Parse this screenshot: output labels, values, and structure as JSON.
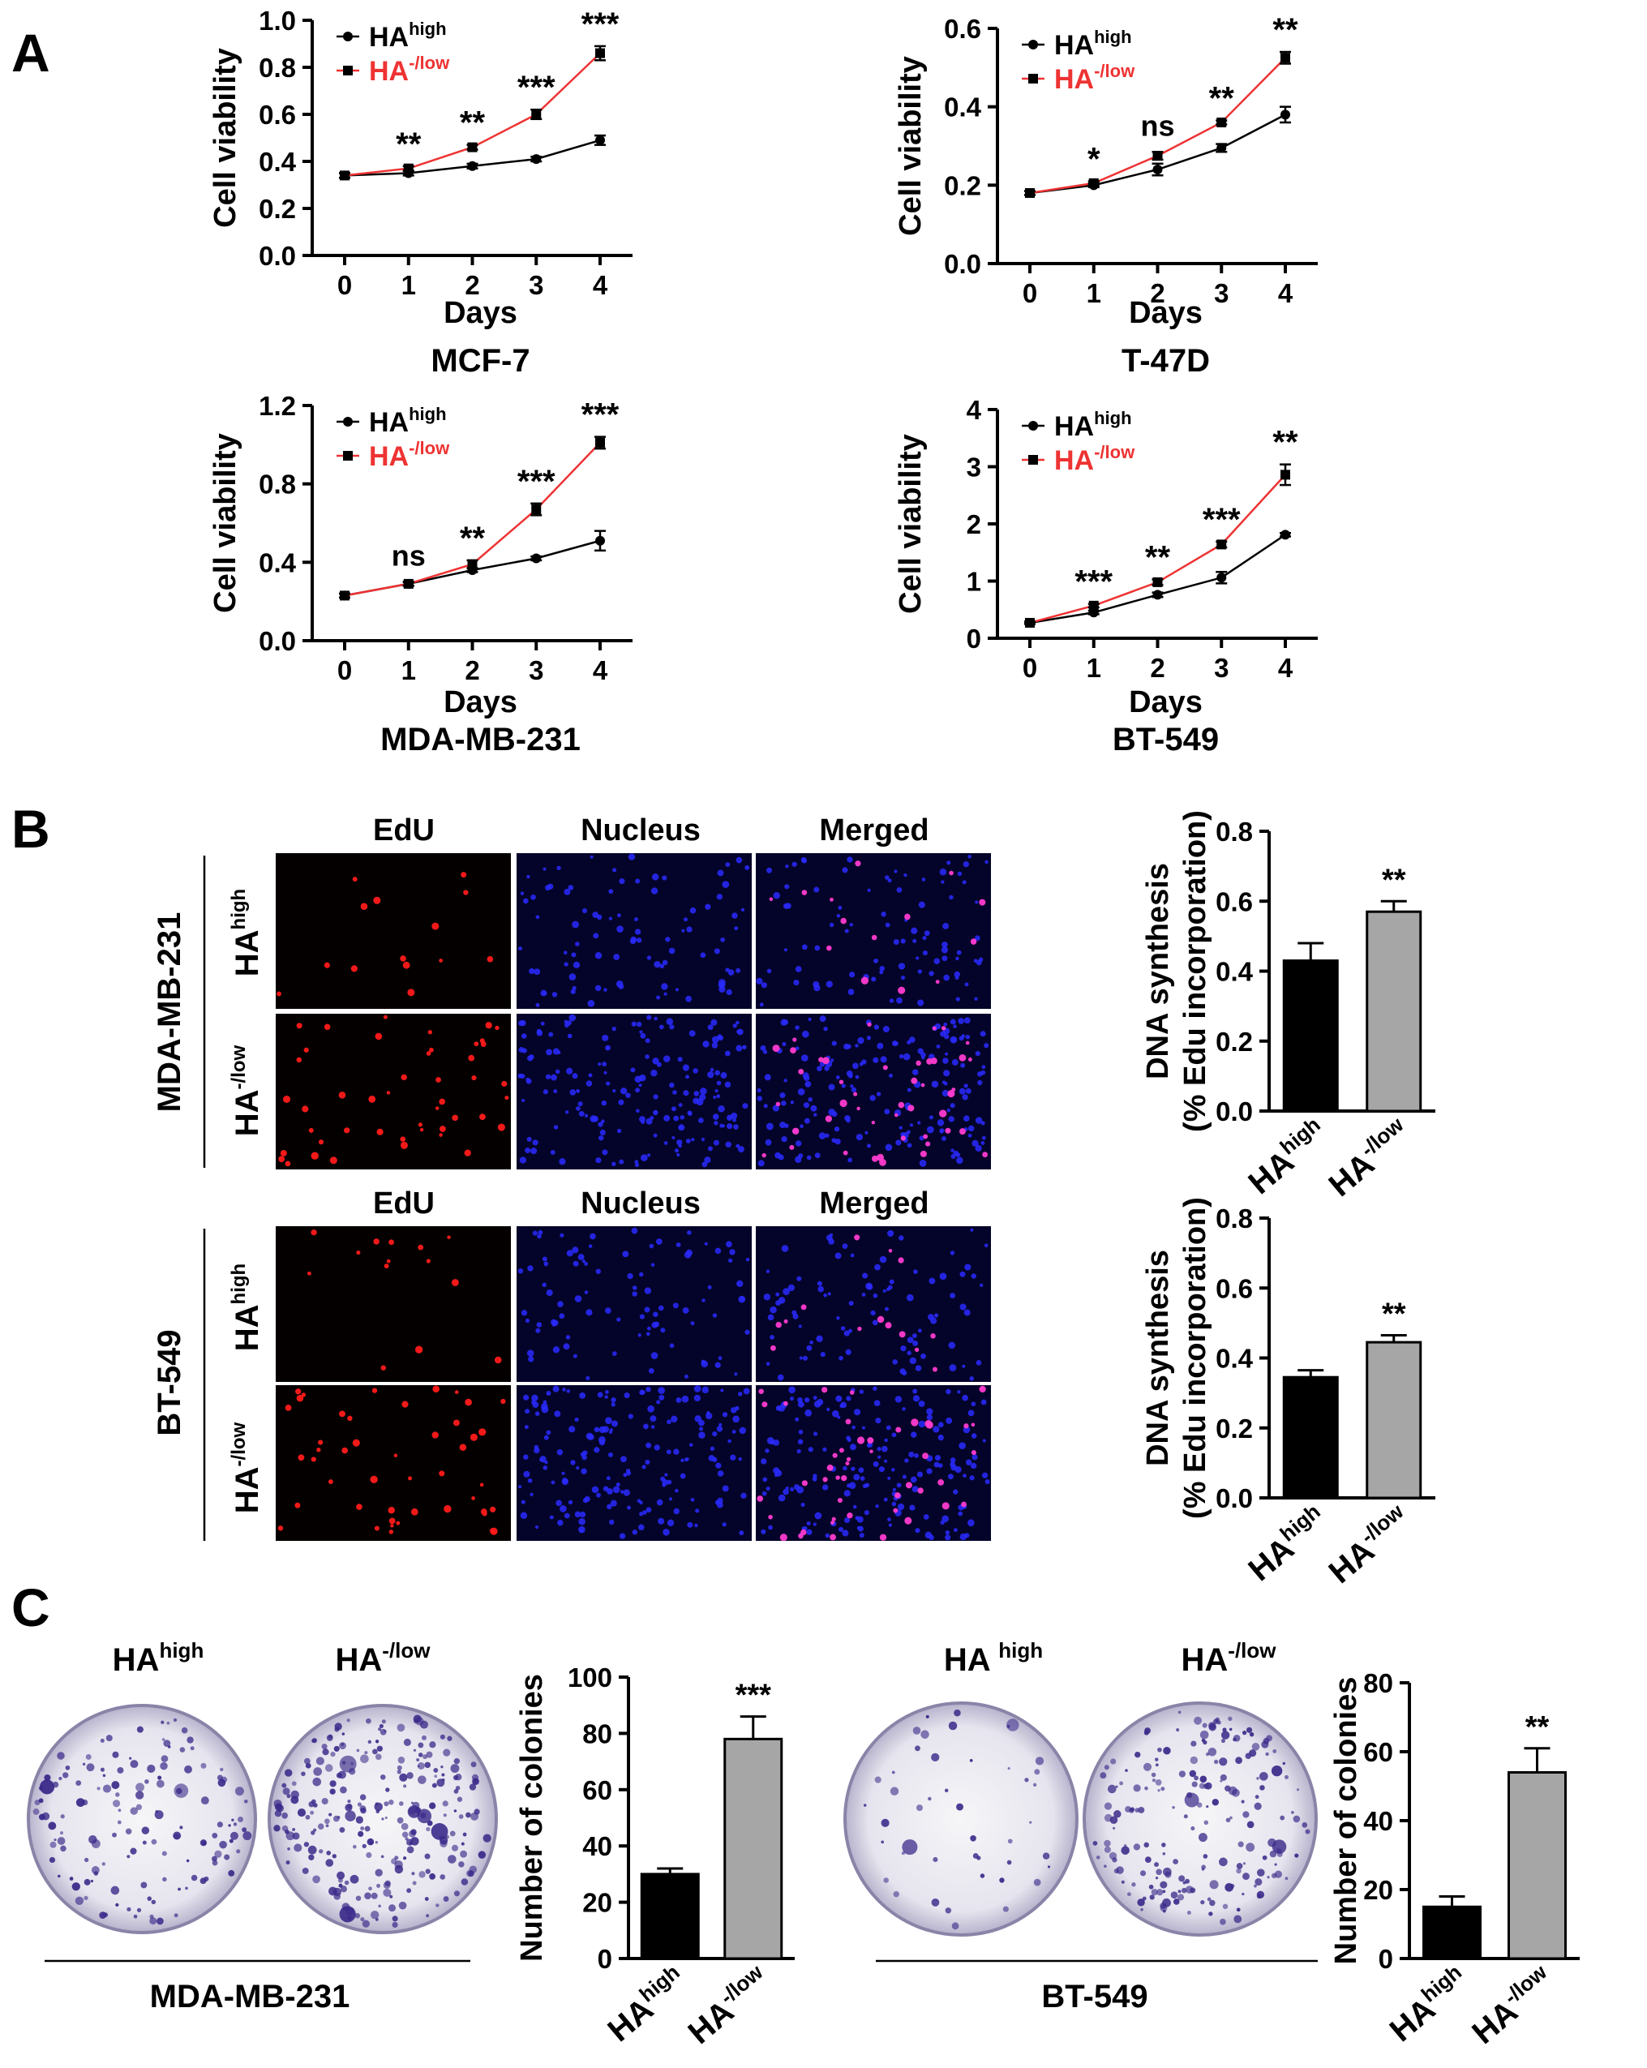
{
  "panel_letters": [
    "A",
    "B",
    "C"
  ],
  "colors": {
    "high": "#000000",
    "low": "#ee3333",
    "bar_high": "#000000",
    "bar_low": "#a6a6a6"
  },
  "legend": {
    "high_base": "HA",
    "high_sup": "high",
    "low_base": "HA",
    "low_sup": "-/low"
  },
  "panel_b": {
    "cols": [
      "EdU",
      "Nucleus",
      "Merged"
    ],
    "cell_lines": [
      "MDA-MB-231",
      "BT-549"
    ],
    "rows": [
      {
        "base": "HA",
        "sup": "high"
      },
      {
        "base": "HA",
        "sup": "-/low"
      }
    ]
  },
  "panel_c": {
    "labels": [
      {
        "base": "HA",
        "sup": "high"
      },
      {
        "base": "HA",
        "sup": "-/low"
      },
      {
        "base": "HA ",
        "sup": "high"
      },
      {
        "base": "HA",
        "sup": "-/low"
      }
    ],
    "cell_lines": [
      "MDA-MB-231",
      "BT-549"
    ]
  },
  "chart_data": [
    {
      "type": "line",
      "title": "MCF-7",
      "xlabel": "Days",
      "ylabel": "Cell viability",
      "x": [
        0,
        1,
        2,
        3,
        4
      ],
      "xticks": [
        "0",
        "1",
        "2",
        "3",
        "4"
      ],
      "ylim": [
        0,
        1.0
      ],
      "yticks": [
        "0.0",
        "0.2",
        "0.4",
        "0.6",
        "0.8",
        "1.0"
      ],
      "series": [
        {
          "name": "HA high",
          "values": [
            0.34,
            0.35,
            0.38,
            0.41,
            0.49
          ],
          "errors": [
            0.01,
            0.01,
            0.01,
            0.01,
            0.02
          ]
        },
        {
          "name": "HA -/low",
          "values": [
            0.34,
            0.37,
            0.46,
            0.6,
            0.86
          ],
          "errors": [
            0.01,
            0.01,
            0.01,
            0.02,
            0.03
          ]
        }
      ],
      "significance": [
        "",
        "**",
        "**",
        "***",
        "***"
      ]
    },
    {
      "type": "line",
      "title": "T-47D",
      "xlabel": "Days",
      "ylabel": "Cell viability",
      "x": [
        0,
        1,
        2,
        3,
        4
      ],
      "xticks": [
        "0",
        "1",
        "2",
        "3",
        "4"
      ],
      "ylim": [
        0,
        0.6
      ],
      "yticks": [
        "0.0",
        "0.2",
        "0.4",
        "0.6"
      ],
      "series": [
        {
          "name": "HA high",
          "values": [
            0.18,
            0.2,
            0.24,
            0.295,
            0.38
          ],
          "errors": [
            0.005,
            0.005,
            0.015,
            0.01,
            0.02
          ]
        },
        {
          "name": "HA -/low",
          "values": [
            0.18,
            0.205,
            0.275,
            0.36,
            0.525
          ],
          "errors": [
            0.005,
            0.005,
            0.01,
            0.005,
            0.015
          ]
        }
      ],
      "significance": [
        "",
        "*",
        "ns",
        "**",
        "**"
      ]
    },
    {
      "type": "line",
      "title": "MDA-MB-231",
      "xlabel": "Days",
      "ylabel": "Cell viability",
      "x": [
        0,
        1,
        2,
        3,
        4
      ],
      "xticks": [
        "0",
        "1",
        "2",
        "3",
        "4"
      ],
      "ylim": [
        0,
        1.2
      ],
      "yticks": [
        "0.0",
        "0.4",
        "0.8",
        "1.2"
      ],
      "series": [
        {
          "name": "HA high",
          "values": [
            0.23,
            0.29,
            0.36,
            0.42,
            0.51
          ],
          "errors": [
            0.01,
            0.01,
            0.01,
            0.01,
            0.05
          ]
        },
        {
          "name": "HA -/low",
          "values": [
            0.23,
            0.29,
            0.39,
            0.67,
            1.01
          ],
          "errors": [
            0.01,
            0.01,
            0.02,
            0.03,
            0.03
          ]
        }
      ],
      "significance": [
        "",
        "ns",
        "**",
        "***",
        "***"
      ]
    },
    {
      "type": "line",
      "title": "BT-549",
      "xlabel": "Days",
      "ylabel": "Cell viability",
      "x": [
        0,
        1,
        2,
        3,
        4
      ],
      "xticks": [
        "0",
        "1",
        "2",
        "3",
        "4"
      ],
      "ylim": [
        0,
        4
      ],
      "yticks": [
        "0",
        "1",
        "2",
        "3",
        "4"
      ],
      "series": [
        {
          "name": "HA high",
          "values": [
            0.27,
            0.45,
            0.76,
            1.06,
            1.81
          ],
          "errors": [
            0.02,
            0.03,
            0.04,
            0.1,
            0.03
          ]
        },
        {
          "name": "HA -/low",
          "values": [
            0.27,
            0.57,
            0.98,
            1.64,
            2.86
          ],
          "errors": [
            0.02,
            0.03,
            0.05,
            0.05,
            0.18
          ]
        }
      ],
      "significance": [
        "",
        "***",
        "**",
        "***",
        "**"
      ]
    },
    {
      "type": "bar",
      "ylabel": [
        "DNA synthesis",
        "(% Edu incorporation)"
      ],
      "categories": [
        {
          "base": "HA",
          "sup": "high"
        },
        {
          "base": "HA",
          "sup": "-/low"
        }
      ],
      "values": [
        0.43,
        0.57
      ],
      "errors": [
        0.05,
        0.03
      ],
      "ylim": [
        0,
        0.8
      ],
      "yticks": [
        "0.0",
        "0.2",
        "0.4",
        "0.6",
        "0.8"
      ],
      "significance": [
        "",
        "**"
      ]
    },
    {
      "type": "bar",
      "ylabel": [
        "DNA synthesis",
        "(% Edu incorporation)"
      ],
      "categories": [
        {
          "base": "HA",
          "sup": "high"
        },
        {
          "base": "HA",
          "sup": "-/low"
        }
      ],
      "values": [
        0.345,
        0.445
      ],
      "errors": [
        0.02,
        0.02
      ],
      "ylim": [
        0,
        0.8
      ],
      "yticks": [
        "0.0",
        "0.2",
        "0.4",
        "0.6",
        "0.8"
      ],
      "significance": [
        "",
        "**"
      ]
    },
    {
      "type": "bar",
      "ylabel": [
        "Number of colonies"
      ],
      "categories": [
        {
          "base": "HA",
          "sup": "high"
        },
        {
          "base": "HA",
          "sup": "-/low"
        }
      ],
      "values": [
        30,
        78
      ],
      "errors": [
        2,
        8
      ],
      "ylim": [
        0,
        100
      ],
      "yticks": [
        "0",
        "20",
        "40",
        "60",
        "80",
        "100"
      ],
      "significance": [
        "",
        "***"
      ]
    },
    {
      "type": "bar",
      "ylabel": [
        "Number of colonies"
      ],
      "categories": [
        {
          "base": "HA",
          "sup": "high"
        },
        {
          "base": "HA",
          "sup": "-/low"
        }
      ],
      "values": [
        15,
        54
      ],
      "errors": [
        3,
        7
      ],
      "ylim": [
        0,
        80
      ],
      "yticks": [
        "0",
        "20",
        "40",
        "60",
        "80"
      ],
      "significance": [
        "",
        "**"
      ]
    }
  ]
}
